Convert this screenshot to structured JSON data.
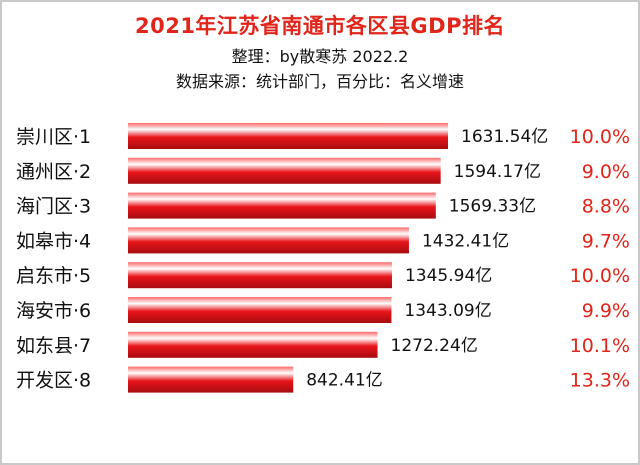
{
  "title": "2021年江苏省南通市各区县GDP排名",
  "subtitle_lines": [
    "整理：by散寒苏 2022.2",
    "数据来源：统计部门，百分比：名义增速"
  ],
  "chart_data": {
    "type": "bar",
    "orientation": "horizontal",
    "title": "2021年江苏省南通市各区县GDP排名",
    "categories": [
      "崇川区·1",
      "通州区·2",
      "海门区·3",
      "如皋市·4",
      "启东市·5",
      "海安市·6",
      "如东县·7",
      "开发区·8"
    ],
    "series": [
      {
        "values": [
          1631.54,
          1594.17,
          1569.33,
          1432.41,
          1345.94,
          1343.09,
          1272.24,
          842.41
        ],
        "value_labels": [
          "1631.54亿",
          "1594.17亿",
          "1569.33亿",
          "1432.41亿",
          "1345.94亿",
          "1343.09亿",
          "1272.24亿",
          "842.41亿"
        ]
      }
    ],
    "growth_labels": [
      "10.0%",
      "9.0%",
      "8.8%",
      "9.7%",
      "10.0%",
      "9.9%",
      "10.1%",
      "13.3%"
    ],
    "bar_color": "#e8151b",
    "growth_color": "#e1251b",
    "grid": false,
    "legend": "none"
  }
}
